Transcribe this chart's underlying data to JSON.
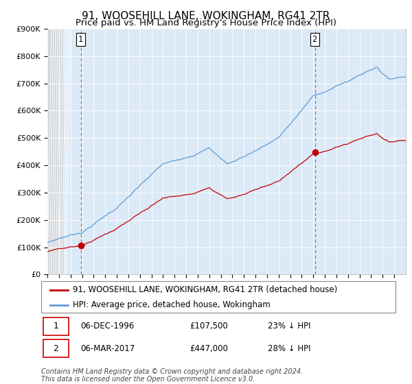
{
  "title": "91, WOOSEHILL LANE, WOKINGHAM, RG41 2TR",
  "subtitle": "Price paid vs. HM Land Registry's House Price Index (HPI)",
  "hpi_color": "#5b9bd5",
  "price_color": "#c00000",
  "marker_color": "#c00000",
  "plot_bg_color": "#dce9f7",
  "hatch_color": "#c8c8c8",
  "ylim": [
    0,
    900000
  ],
  "yticks": [
    0,
    100000,
    200000,
    300000,
    400000,
    500000,
    600000,
    700000,
    800000,
    900000
  ],
  "ytick_labels": [
    "£0",
    "£100K",
    "£200K",
    "£300K",
    "£400K",
    "£500K",
    "£600K",
    "£700K",
    "£800K",
    "£900K"
  ],
  "sale1_price": 107500,
  "sale1_year": 1996.92,
  "sale2_price": 447000,
  "sale2_year": 2017.17,
  "legend_line1": "91, WOOSEHILL LANE, WOKINGHAM, RG41 2TR (detached house)",
  "legend_line2": "HPI: Average price, detached house, Wokingham",
  "footer": "Contains HM Land Registry data © Crown copyright and database right 2024.\nThis data is licensed under the Open Government Licence v3.0.",
  "title_fontsize": 11,
  "subtitle_fontsize": 9.5,
  "tick_fontsize": 8,
  "legend_fontsize": 8.5,
  "annotation_fontsize": 8.5
}
